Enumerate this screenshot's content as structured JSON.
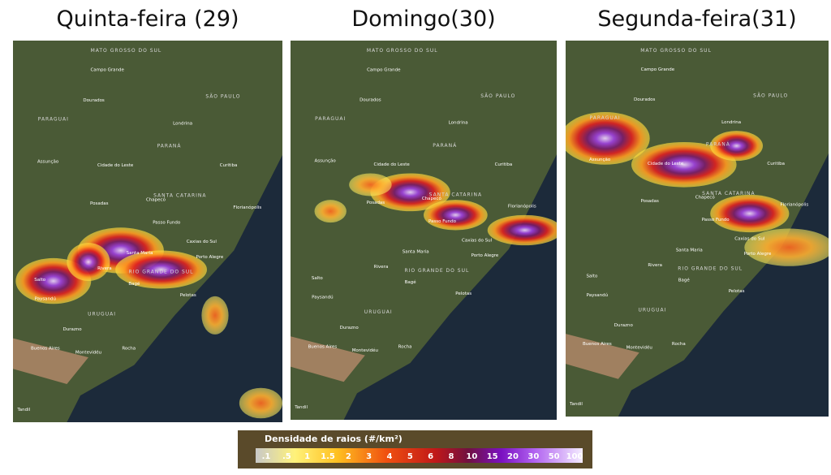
{
  "panels": [
    {
      "title": "Quinta-feira (29)"
    },
    {
      "title": "Domingo(30)"
    },
    {
      "title": "Segunda-feira(31)"
    }
  ],
  "regions": [
    "MATO GROSSO DO SUL",
    "PARAGUAI",
    "SÃO PAULO",
    "PARANÁ",
    "SANTA CATARINA",
    "RIO GRANDE DO SUL",
    "URUGUAI"
  ],
  "cities": [
    "Campo Grande",
    "Dourados",
    "Londrina",
    "Assunção",
    "Cidade do Leste",
    "Curitiba",
    "Posadas",
    "Chapecó",
    "Florianópolis",
    "Passo Fundo",
    "Caxias do Sul",
    "Santa Maria",
    "Porto Alegre",
    "Rivera",
    "Salto",
    "Paysandú",
    "Bagé",
    "Pelotas",
    "Durazno",
    "Buenos Aires",
    "Montevidéu",
    "Rocha",
    "Tandil"
  ],
  "legend": {
    "title": "Densidade de raios (#/km²)",
    "labels": [
      ".1",
      ".5",
      "1",
      "1.5",
      "2",
      "3",
      "4",
      "5",
      "6",
      "8",
      "10",
      "15",
      "20",
      "30",
      "50",
      "100"
    ]
  }
}
